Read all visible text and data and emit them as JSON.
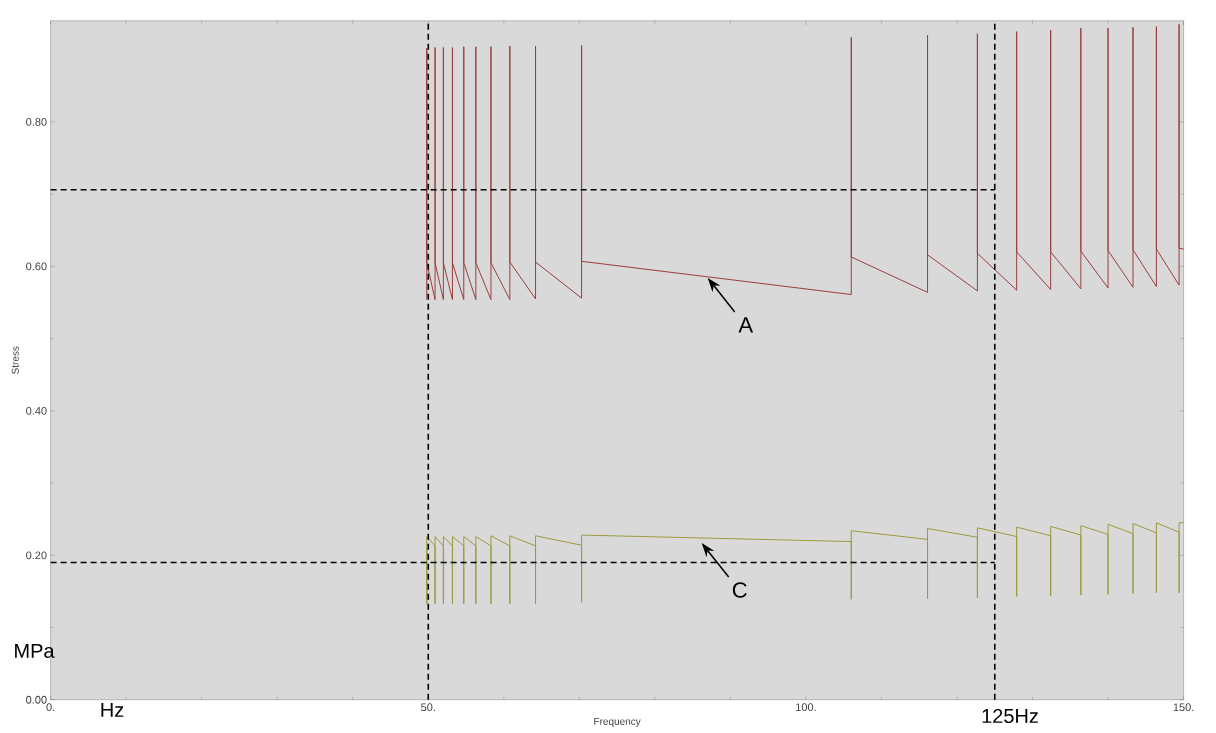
{
  "chart_data": {
    "type": "line",
    "xlabel": "Frequency",
    "ylabel": "Stress",
    "xlim": [
      0,
      150
    ],
    "ylim": [
      0,
      0.94
    ],
    "xticks": [
      {
        "value": 0,
        "label": "0."
      },
      {
        "value": 50,
        "label": "50."
      },
      {
        "value": 100,
        "label": "100."
      },
      {
        "value": 150,
        "label": "150."
      }
    ],
    "yticks": [
      {
        "value": 0,
        "label": "0.00"
      },
      {
        "value": 0.2,
        "label": "0.20"
      },
      {
        "value": 0.4,
        "label": "0.40"
      },
      {
        "value": 0.6,
        "label": "0.60"
      },
      {
        "value": 0.8,
        "label": "0.80"
      }
    ],
    "series": [
      {
        "color": "#9b3d3d",
        "x": [
          49.8,
          49.8,
          49.8,
          50.9,
          50.9,
          50.9,
          52.0,
          52.0,
          52.0,
          53.2,
          53.2,
          53.2,
          54.7,
          54.7,
          54.7,
          56.3,
          56.3,
          56.3,
          58.3,
          58.3,
          58.3,
          60.8,
          60.8,
          60.8,
          64.2,
          64.2,
          64.2,
          70.3,
          70.3,
          70.3,
          106.0,
          106.0,
          106.0,
          116.1,
          116.1,
          116.1,
          122.7,
          122.7,
          122.7,
          127.9,
          127.9,
          127.9,
          132.4,
          132.4,
          132.4,
          136.4,
          136.4,
          136.4,
          140.0,
          140.0,
          140.0,
          143.3,
          143.3,
          143.3,
          146.4,
          146.4,
          146.4,
          149.4,
          149.4,
          149.4,
          150
        ],
        "values": [
          0.554,
          0.902,
          0.605,
          0.554,
          0.903,
          0.605,
          0.554,
          0.903,
          0.605,
          0.554,
          0.903,
          0.605,
          0.554,
          0.904,
          0.605,
          0.554,
          0.904,
          0.605,
          0.554,
          0.904,
          0.605,
          0.554,
          0.905,
          0.606,
          0.555,
          0.905,
          0.606,
          0.556,
          0.906,
          0.607,
          0.561,
          0.917,
          0.613,
          0.564,
          0.92,
          0.616,
          0.566,
          0.922,
          0.618,
          0.567,
          0.925,
          0.62,
          0.568,
          0.927,
          0.62,
          0.569,
          0.93,
          0.621,
          0.57,
          0.93,
          0.622,
          0.571,
          0.931,
          0.623,
          0.572,
          0.932,
          0.624,
          0.574,
          0.935,
          0.625,
          0.624
        ]
      },
      {
        "color": "#9c9a3c",
        "x": [
          49.8,
          49.8,
          49.8,
          50.9,
          50.9,
          50.9,
          52.0,
          52.0,
          52.0,
          53.2,
          53.2,
          53.2,
          54.7,
          54.7,
          54.7,
          56.3,
          56.3,
          56.3,
          58.3,
          58.3,
          58.3,
          60.8,
          60.8,
          60.8,
          64.2,
          64.2,
          64.2,
          70.3,
          70.3,
          70.3,
          106.0,
          106.0,
          106.0,
          116.1,
          116.1,
          116.1,
          122.7,
          122.7,
          122.7,
          127.9,
          127.9,
          127.9,
          132.4,
          132.4,
          132.4,
          136.4,
          136.4,
          136.4,
          140.0,
          140.0,
          140.0,
          143.3,
          143.3,
          143.3,
          146.4,
          146.4,
          146.4,
          149.4,
          149.4,
          149.4,
          150
        ],
        "values": [
          0.21,
          0.133,
          0.226,
          0.213,
          0.133,
          0.226,
          0.213,
          0.133,
          0.226,
          0.213,
          0.133,
          0.226,
          0.213,
          0.133,
          0.226,
          0.213,
          0.133,
          0.226,
          0.213,
          0.133,
          0.227,
          0.213,
          0.133,
          0.227,
          0.213,
          0.133,
          0.227,
          0.214,
          0.135,
          0.228,
          0.219,
          0.139,
          0.234,
          0.222,
          0.14,
          0.237,
          0.225,
          0.141,
          0.238,
          0.226,
          0.143,
          0.239,
          0.227,
          0.144,
          0.24,
          0.228,
          0.145,
          0.241,
          0.229,
          0.146,
          0.243,
          0.23,
          0.147,
          0.244,
          0.231,
          0.148,
          0.245,
          0.232,
          0.148,
          0.245,
          0.245
        ]
      },
      {
        "color": "#000000",
        "line_style": "dashed",
        "x": [
          0,
          125
        ],
        "values": [
          0.706,
          0.706
        ]
      },
      {
        "color": "#000000",
        "line_style": "dashed",
        "x": [
          0,
          125
        ],
        "values": [
          0.19,
          0.19
        ]
      }
    ],
    "ref_lines": [
      {
        "axis": "x",
        "value": 50,
        "color": "#000000",
        "line_style": "dashed"
      },
      {
        "axis": "x",
        "value": 125,
        "color": "#000000",
        "line_style": "dashed"
      }
    ],
    "annotations": [
      {
        "text": "A",
        "x": 87.0,
        "y": 0.584
      },
      {
        "text": "C",
        "x": 86.2,
        "y": 0.217
      },
      "MPa",
      "Hz",
      "125Hz"
    ]
  }
}
